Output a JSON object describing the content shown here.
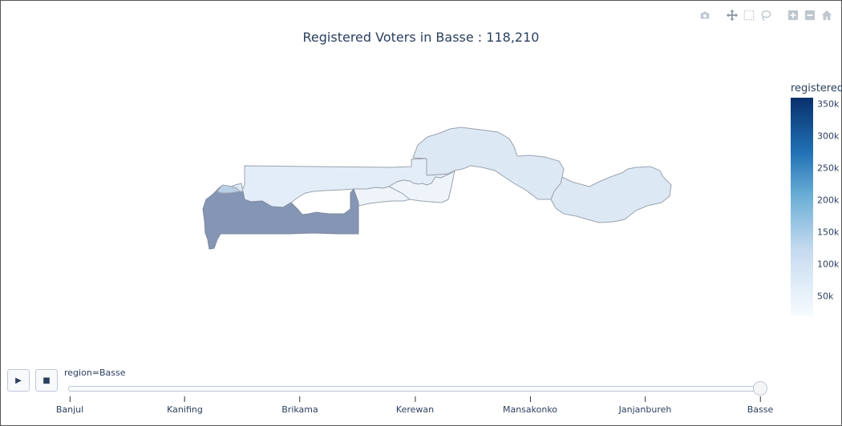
{
  "title": "Registered Voters in Basse : 118,210",
  "modebar": {
    "buttons": [
      "camera-icon",
      "pan-icon",
      "box-select-icon",
      "lasso-icon",
      "zoom-in-icon",
      "zoom-out-icon",
      "home-icon"
    ]
  },
  "colorbar": {
    "title": "registered",
    "ticks": [
      "350k",
      "300k",
      "250k",
      "200k",
      "150k",
      "100k",
      "50k"
    ],
    "tick_values": [
      350000,
      300000,
      250000,
      200000,
      150000,
      100000,
      50000
    ],
    "min": 20000,
    "max": 360000,
    "colors": [
      "#f7fbff",
      "#c6dbef",
      "#6baed6",
      "#2171b5",
      "#08306b"
    ]
  },
  "map": {
    "selected_region": "Basse",
    "regions": [
      {
        "name": "Banjul",
        "fill": "#b9cfe6"
      },
      {
        "name": "Kanifing",
        "fill": "#dde9f5"
      },
      {
        "name": "Brikama",
        "fill": "#8595b5"
      },
      {
        "name": "Kerewan",
        "fill": "#e3edf7"
      },
      {
        "name": "Mansakonko",
        "fill": "#eef4fa"
      },
      {
        "name": "Janjanbureh",
        "fill": "#dce8f4"
      },
      {
        "name": "Basse",
        "fill": "#dce8f4"
      }
    ]
  },
  "slider": {
    "current_label": "region=Basse",
    "steps": [
      "Banjul",
      "Kanifing",
      "Brikama",
      "Kerewan",
      "Mansakonko",
      "Janjanbureh",
      "Basse"
    ],
    "active_index": 6
  },
  "controls": {
    "play": "▶",
    "stop": "■"
  }
}
